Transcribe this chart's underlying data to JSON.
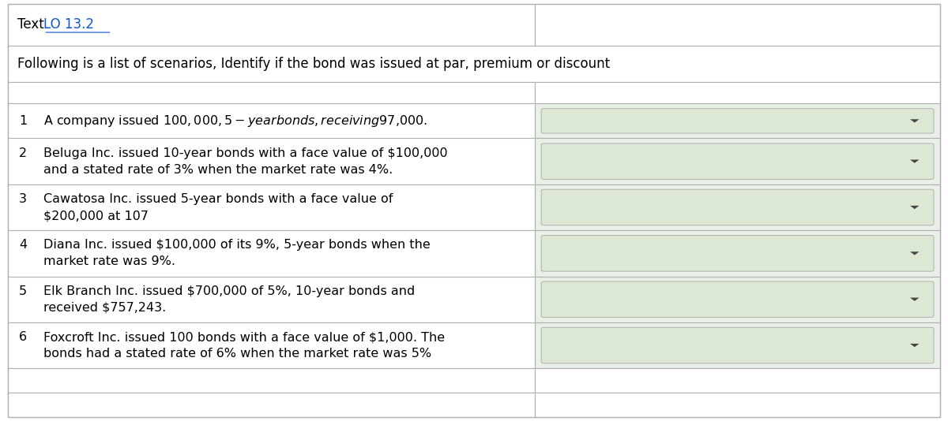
{
  "title_text": "Text ",
  "title_link": "LO 13.2",
  "subtitle": "Following is a list of scenarios, Identify if the bond was issued at par, premium or discount",
  "rows": [
    {
      "num": "1",
      "text_line1": "A company issued $100,000, 5-year bonds, receiving $97,000.",
      "text_line2": ""
    },
    {
      "num": "2",
      "text_line1": "Beluga Inc. issued 10-year bonds with a face value of $100,000",
      "text_line2": "and a stated rate of 3% when the market rate was 4%."
    },
    {
      "num": "3",
      "text_line1": "Cawatosa Inc. issued 5-year bonds with a face value of",
      "text_line2": "$200,000 at 107"
    },
    {
      "num": "4",
      "text_line1": "Diana Inc. issued $100,000 of its 9%, 5-year bonds when the",
      "text_line2": "market rate was 9%."
    },
    {
      "num": "5",
      "text_line1": "Elk Branch Inc. issued $700,000 of 5%, 10-year bonds and",
      "text_line2": "received $757,243."
    },
    {
      "num": "6",
      "text_line1": "Foxcroft Inc. issued 100 bonds with a face value of $1,000. The",
      "text_line2": "bonds had a stated rate of 6% when the market rate was 5%"
    }
  ],
  "extra_rows": 2,
  "col_split": 0.565,
  "bg_color": "#ffffff",
  "dropdown_bg": "#dce8d4",
  "dropdown_border": "#b0b0b0",
  "grid_color": "#b0b0b0",
  "link_color": "#1155cc",
  "text_color": "#000000",
  "font_size": 11.5,
  "title_font_size": 12,
  "subtitle_font_size": 12
}
